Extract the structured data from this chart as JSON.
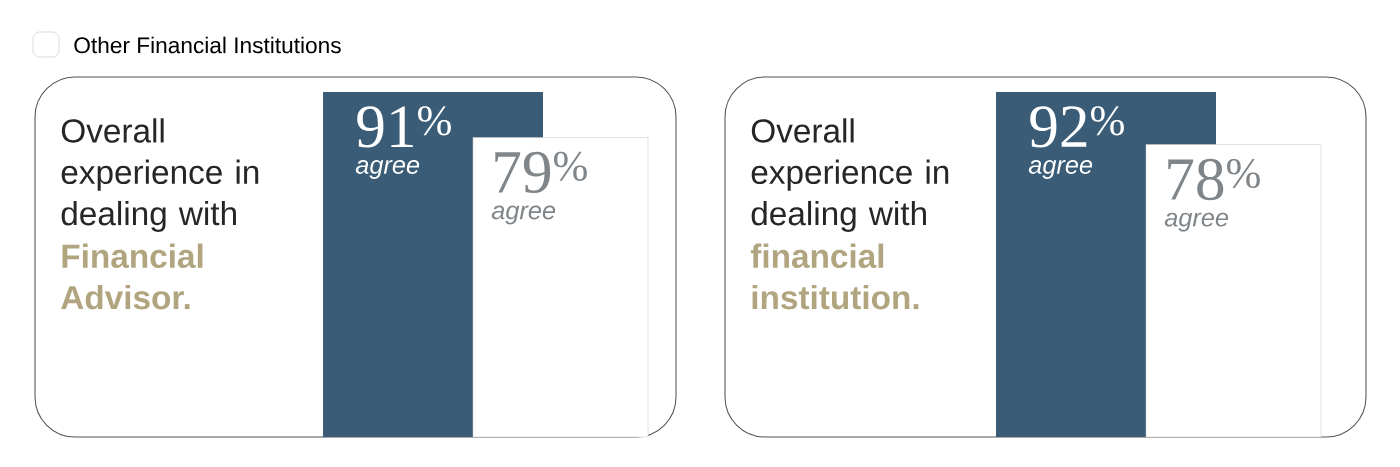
{
  "chart_data": [
    {
      "type": "bar",
      "title": "Overall experience in dealing with",
      "subtitle": "Financial Advisor.",
      "categories": [
        null
      ],
      "legend": "top left",
      "annotations": [
        "agree",
        "agree"
      ],
      "series": [
        {
          "color": "#3a5c76",
          "values": [
            91
          ],
          "value_labels": [
            "91$^{%}$"
          ]
        },
        {
          "name": "Other Financial Institutions",
          "color": "#ffffff",
          "values": [
            79
          ],
          "value_labels": [
            "79$^{%}$"
          ]
        }
      ]
    },
    {
      "type": "bar",
      "title": "Overall experience in dealing with",
      "subtitle": "financial institution.",
      "categories": [
        null
      ],
      "annotations": [
        "agree",
        "agree"
      ],
      "series": [
        {
          "color": "#3a5c76",
          "values": [
            92
          ],
          "value_labels": [
            "92$^{%}$"
          ]
        },
        {
          "color": "#ffffff",
          "values": [
            78
          ],
          "value_labels": [
            "78$^{%}$"
          ]
        }
      ]
    }
  ]
}
